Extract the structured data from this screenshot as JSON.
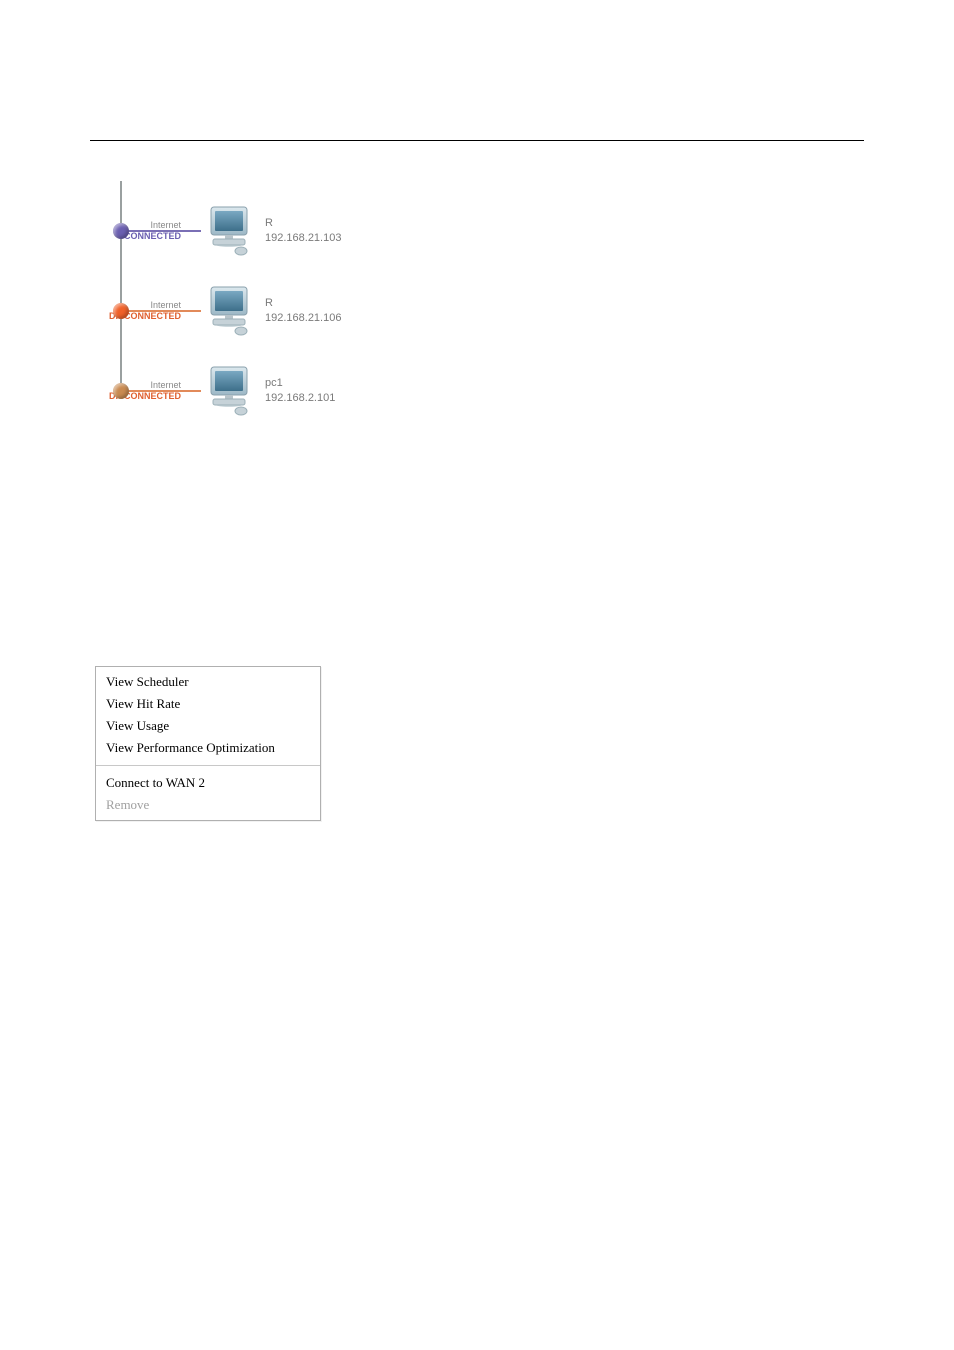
{
  "figure1": {
    "rows": [
      {
        "status_label": "Internet",
        "status_text": "CONNECTED",
        "status_class": "connected",
        "dot_color": "#6b5fb0",
        "line_color_class": "blue",
        "host": "R",
        "ip": "192.168.21.103"
      },
      {
        "status_label": "Internet",
        "status_text": "DISCONNECTED",
        "status_class": "disconnected",
        "dot_color": "#f06028",
        "line_color_class": "orange",
        "host": "R",
        "ip": "192.168.21.106"
      },
      {
        "status_label": "Internet",
        "status_text": "DISCONNECTED",
        "status_class": "disconnected",
        "dot_color": "#c98a50",
        "line_color_class": "orange",
        "host": "pc1",
        "ip": "192.168.2.101"
      }
    ]
  },
  "figure2": {
    "items_top": [
      "View Scheduler",
      "View Hit Rate",
      "View Usage",
      "View Performance Optimization"
    ],
    "item_connect": "Connect to WAN 2",
    "item_remove": "Remove"
  }
}
